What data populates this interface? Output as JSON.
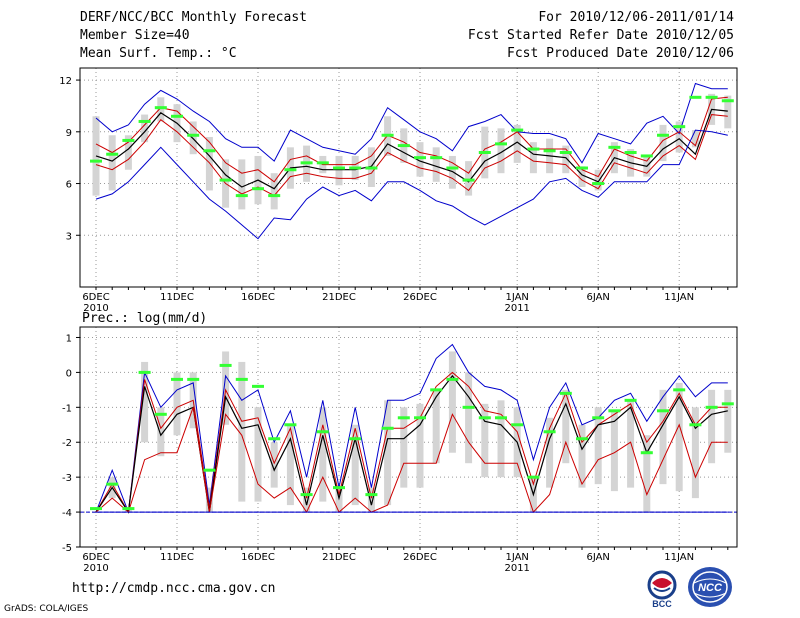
{
  "header": {
    "title": "DERF/NCC/BCC Monthly Forecast",
    "member_size": "Member Size=40",
    "variable": "Mean Surf. Temp.: °C",
    "forecast_period": "For 2010/12/06-2011/01/14",
    "fcst_started": "Fcst Started Refer Date 2010/12/05",
    "fcst_produced": "Fcst Produced Date 2010/12/06"
  },
  "footer": {
    "url": "http://cmdp.ncc.cma.gov.cn",
    "credit": "GrADS: COLA/IGES",
    "logo_bcc": "BCC",
    "logo_ncc": "NCC"
  },
  "colors": {
    "blue": "#0000cc",
    "red": "#cc0000",
    "black": "#000000",
    "green": "#33ff33",
    "bar": "#d4d4d4",
    "grid": "#999999"
  },
  "chart_data": [
    {
      "type": "line",
      "title": "Mean Surf. Temp.: °C",
      "ylim": [
        0,
        12.7
      ],
      "yticks": [
        3,
        6,
        9,
        12
      ],
      "xtick_labels": [
        {
          "day": 1,
          "label": "6DEC",
          "sub": "2010"
        },
        {
          "day": 6,
          "label": "11DEC",
          "sub": ""
        },
        {
          "day": 11,
          "label": "16DEC",
          "sub": ""
        },
        {
          "day": 16,
          "label": "21DEC",
          "sub": ""
        },
        {
          "day": 21,
          "label": "26DEC",
          "sub": ""
        },
        {
          "day": 27,
          "label": "1JAN",
          "sub": "2011"
        },
        {
          "day": 32,
          "label": "6JAN",
          "sub": ""
        },
        {
          "day": 37,
          "label": "11JAN",
          "sub": ""
        }
      ],
      "grid": true,
      "series": [
        {
          "name": "max",
          "color": "blue",
          "values": [
            9.8,
            9.0,
            9.4,
            10.6,
            11.4,
            10.9,
            10.2,
            9.6,
            8.6,
            8.1,
            8.1,
            7.3,
            9.1,
            8.6,
            8.1,
            7.9,
            7.7,
            8.6,
            10.4,
            9.7,
            9.0,
            8.6,
            7.9,
            9.3,
            9.6,
            10.0,
            9.0,
            8.9,
            8.9,
            8.6,
            7.2,
            8.9,
            8.6,
            8.3,
            9.5,
            9.9,
            8.9,
            11.8,
            11.5,
            11.5
          ]
        },
        {
          "name": "upper",
          "color": "red",
          "values": [
            8.3,
            7.8,
            8.4,
            9.4,
            10.4,
            10.2,
            9.3,
            8.4,
            7.2,
            6.6,
            6.8,
            6.1,
            7.4,
            7.6,
            7.1,
            7.1,
            7.1,
            7.6,
            8.8,
            8.4,
            7.8,
            7.6,
            7.2,
            6.6,
            8.0,
            8.4,
            9.0,
            8.0,
            8.0,
            8.0,
            6.8,
            6.4,
            8.0,
            7.6,
            7.3,
            8.5,
            9.0,
            8.2,
            10.9,
            11.0
          ]
        },
        {
          "name": "mean",
          "color": "black",
          "values": [
            7.6,
            7.3,
            8.0,
            9.0,
            10.1,
            9.5,
            8.6,
            7.6,
            6.5,
            5.8,
            6.2,
            5.7,
            6.9,
            7.0,
            6.8,
            6.8,
            6.8,
            7.0,
            8.3,
            7.8,
            7.3,
            7.0,
            6.7,
            6.1,
            7.3,
            7.8,
            8.4,
            7.7,
            7.6,
            7.5,
            6.5,
            6.1,
            7.5,
            7.2,
            7.0,
            8.0,
            8.6,
            7.7,
            10.3,
            10.2
          ]
        },
        {
          "name": "lower",
          "color": "red",
          "values": [
            7.1,
            6.8,
            7.4,
            8.4,
            9.7,
            9.0,
            8.1,
            7.2,
            6.0,
            5.4,
            5.8,
            5.3,
            6.4,
            6.6,
            6.4,
            6.3,
            6.3,
            6.6,
            7.8,
            7.3,
            6.9,
            6.7,
            6.3,
            5.6,
            6.9,
            7.3,
            7.9,
            7.3,
            7.2,
            7.1,
            6.2,
            5.7,
            7.2,
            6.9,
            6.6,
            7.6,
            8.2,
            7.4,
            10.0,
            9.9
          ]
        },
        {
          "name": "min",
          "color": "blue",
          "values": [
            5.1,
            5.4,
            6.1,
            7.1,
            8.1,
            7.1,
            6.1,
            5.1,
            4.4,
            3.6,
            2.8,
            4.0,
            3.9,
            5.1,
            5.8,
            5.3,
            5.6,
            5.0,
            6.1,
            6.1,
            5.6,
            5.0,
            4.7,
            4.1,
            3.6,
            4.1,
            4.6,
            5.1,
            6.1,
            6.3,
            5.6,
            5.2,
            6.1,
            6.1,
            6.1,
            7.1,
            7.1,
            9.1,
            9.0,
            8.8
          ]
        },
        {
          "name": "observed",
          "color": "green",
          "values": [
            7.3,
            7.7,
            8.5,
            9.6,
            10.4,
            9.9,
            8.8,
            7.9,
            6.2,
            5.3,
            5.7,
            5.3,
            6.8,
            7.2,
            7.2,
            6.9,
            6.9,
            6.9,
            8.8,
            8.2,
            7.5,
            7.5,
            6.9,
            6.2,
            7.8,
            8.3,
            9.1,
            8.0,
            7.9,
            7.8,
            6.9,
            6.0,
            8.1,
            7.8,
            7.6,
            8.8,
            9.3,
            11.0,
            11.0,
            10.8
          ]
        }
      ],
      "bars_low": [
        5.3,
        5.6,
        6.8,
        8.4,
        9.6,
        8.4,
        7.7,
        5.6,
        4.6,
        4.5,
        4.8,
        4.5,
        5.7,
        6.1,
        6.6,
        5.9,
        6.2,
        5.8,
        7.6,
        7.2,
        6.4,
        6.1,
        5.7,
        5.3,
        6.3,
        6.6,
        7.2,
        6.6,
        6.6,
        6.6,
        5.8,
        5.6,
        6.6,
        6.4,
        6.4,
        7.3,
        7.8,
        8.1,
        9.4,
        9.2
      ],
      "bars_high": [
        9.9,
        8.8,
        8.8,
        10.0,
        11.0,
        10.6,
        9.6,
        8.7,
        7.4,
        7.4,
        7.6,
        6.6,
        8.1,
        8.2,
        7.6,
        7.6,
        7.6,
        8.1,
        9.9,
        9.2,
        8.4,
        8.1,
        7.6,
        7.3,
        9.3,
        9.2,
        9.4,
        8.4,
        8.6,
        8.2,
        7.0,
        6.8,
        8.4,
        8.0,
        7.6,
        9.4,
        9.6,
        9.1,
        11.2,
        11.1
      ]
    },
    {
      "type": "line",
      "title": "Prec.: log(mm/d)",
      "ylim": [
        -5,
        1.3
      ],
      "yticks": [
        -5,
        -4,
        -3,
        -2,
        -1,
        0,
        1
      ],
      "xtick_labels": [
        {
          "day": 1,
          "label": "6DEC",
          "sub": "2010"
        },
        {
          "day": 6,
          "label": "11DEC",
          "sub": ""
        },
        {
          "day": 11,
          "label": "16DEC",
          "sub": ""
        },
        {
          "day": 16,
          "label": "21DEC",
          "sub": ""
        },
        {
          "day": 21,
          "label": "26DEC",
          "sub": ""
        },
        {
          "day": 27,
          "label": "1JAN",
          "sub": "2011"
        },
        {
          "day": 32,
          "label": "6JAN",
          "sub": ""
        },
        {
          "day": 37,
          "label": "11JAN",
          "sub": ""
        }
      ],
      "grid": true,
      "baseline": -4,
      "series": [
        {
          "name": "max",
          "color": "blue",
          "values": [
            -4.0,
            -2.8,
            -4.0,
            0.0,
            -1.0,
            -0.5,
            -0.3,
            -3.8,
            -0.1,
            -0.8,
            -0.5,
            -2.0,
            -1.1,
            -3.0,
            -0.8,
            -3.3,
            -1.0,
            -3.3,
            -0.8,
            -0.8,
            -0.6,
            0.4,
            0.8,
            0.0,
            -0.4,
            -0.5,
            -0.8,
            -2.5,
            -1.0,
            -0.3,
            -1.5,
            -1.3,
            -0.8,
            -0.6,
            -1.4,
            -0.7,
            -0.1,
            -0.7,
            -0.3,
            -0.3
          ]
        },
        {
          "name": "upper",
          "color": "red",
          "values": [
            -4.0,
            -3.2,
            -4.0,
            -0.2,
            -1.6,
            -1.0,
            -0.8,
            -3.9,
            -0.5,
            -1.4,
            -1.3,
            -2.6,
            -1.6,
            -3.6,
            -1.5,
            -3.5,
            -1.6,
            -3.6,
            -1.6,
            -1.6,
            -1.3,
            -0.4,
            0.0,
            -0.4,
            -1.1,
            -1.2,
            -1.7,
            -3.2,
            -1.6,
            -0.6,
            -2.0,
            -1.5,
            -1.2,
            -0.9,
            -2.0,
            -1.4,
            -0.6,
            -1.5,
            -1.0,
            -1.0
          ]
        },
        {
          "name": "mean",
          "color": "black",
          "values": [
            -4.0,
            -3.3,
            -4.0,
            -0.4,
            -1.8,
            -1.2,
            -1.0,
            -4.0,
            -0.7,
            -1.6,
            -1.5,
            -2.8,
            -1.9,
            -3.8,
            -1.8,
            -3.6,
            -1.9,
            -3.8,
            -1.9,
            -1.9,
            -1.5,
            -0.7,
            -0.1,
            -0.7,
            -1.4,
            -1.5,
            -2.0,
            -3.5,
            -1.9,
            -0.9,
            -2.2,
            -1.5,
            -1.4,
            -1.0,
            -2.3,
            -1.5,
            -0.7,
            -1.6,
            -1.2,
            -1.1
          ]
        },
        {
          "name": "lower",
          "color": "red",
          "values": [
            -4.0,
            -3.6,
            -4.0,
            -2.5,
            -2.3,
            -2.3,
            -1.0,
            -4.0,
            -1.2,
            -1.8,
            -3.2,
            -3.6,
            -3.3,
            -4.0,
            -3.0,
            -4.0,
            -3.6,
            -4.0,
            -3.8,
            -2.6,
            -2.6,
            -2.6,
            -1.2,
            -2.0,
            -2.6,
            -2.6,
            -2.6,
            -4.0,
            -3.5,
            -2.0,
            -3.2,
            -2.5,
            -2.3,
            -2.0,
            -3.5,
            -2.5,
            -1.5,
            -3.0,
            -2.0,
            -2.0
          ]
        },
        {
          "name": "min",
          "color": "blue",
          "values": [
            -4.0,
            -4.0,
            -4.0,
            -4.0,
            -4.0,
            -4.0,
            -4.0,
            -4.0,
            -4.0,
            -4.0,
            -4.0,
            -4.0,
            -4.0,
            -4.0,
            -4.0,
            -4.0,
            -4.0,
            -4.0,
            -4.0,
            -4.0,
            -4.0,
            -4.0,
            -4.0,
            -4.0,
            -4.0,
            -4.0,
            -4.0,
            -4.0,
            -4.0,
            -4.0,
            -4.0,
            -4.0,
            -4.0,
            -4.0,
            -4.0,
            -4.0,
            -4.0,
            -4.0,
            -4.0,
            -4.0
          ]
        },
        {
          "name": "observed",
          "color": "green",
          "values": [
            -3.9,
            -3.2,
            -3.9,
            0.0,
            -1.2,
            -0.2,
            -0.2,
            -2.8,
            0.2,
            -0.2,
            -0.4,
            -1.9,
            -1.5,
            -3.5,
            -1.7,
            -3.3,
            -1.9,
            -3.5,
            -1.6,
            -1.3,
            -1.3,
            -0.5,
            -0.2,
            -1.0,
            -1.3,
            -1.3,
            -1.5,
            -3.0,
            -1.7,
            -0.6,
            -1.9,
            -1.3,
            -1.1,
            -0.8,
            -2.3,
            -1.1,
            -0.5,
            -1.5,
            -1.0,
            -0.9
          ]
        }
      ],
      "bars_low": [
        -4.0,
        -3.6,
        -4.0,
        -2.0,
        -2.4,
        -1.8,
        -1.6,
        -4.0,
        -1.5,
        -3.7,
        -3.7,
        -3.3,
        -3.8,
        -4.0,
        -3.7,
        -4.0,
        -3.8,
        -4.0,
        -3.8,
        -3.3,
        -3.3,
        -2.6,
        -2.3,
        -2.6,
        -3.0,
        -3.0,
        -3.0,
        -4.0,
        -3.3,
        -2.6,
        -3.3,
        -3.2,
        -3.4,
        -3.3,
        -4.0,
        -3.2,
        -3.4,
        -3.6,
        -2.6,
        -2.3
      ],
      "bars_high": [
        -4.0,
        -3.0,
        -3.9,
        0.3,
        -1.0,
        0.0,
        0.0,
        -3.3,
        0.6,
        0.3,
        -1.0,
        -2.0,
        -1.5,
        -3.3,
        -1.0,
        -3.3,
        -1.5,
        -3.3,
        -0.8,
        -1.0,
        -0.9,
        -0.5,
        0.6,
        0.0,
        -0.9,
        -0.8,
        -1.0,
        -3.0,
        -1.3,
        -0.5,
        -1.5,
        -1.0,
        -1.1,
        -0.8,
        -1.8,
        -0.5,
        -0.3,
        -1.0,
        -0.5,
        -0.5
      ]
    }
  ]
}
